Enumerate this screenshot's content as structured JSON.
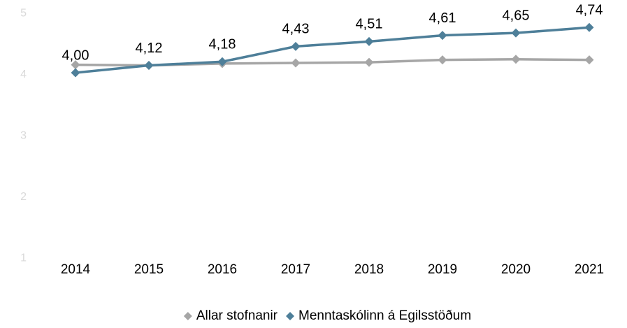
{
  "chart_data": {
    "type": "line",
    "categories": [
      "2014",
      "2015",
      "2016",
      "2017",
      "2018",
      "2019",
      "2020",
      "2021"
    ],
    "series": [
      {
        "name": "Allar stofnanir",
        "color": "#a6a6a6",
        "values": [
          4.13,
          4.12,
          4.15,
          4.16,
          4.17,
          4.21,
          4.22,
          4.21
        ]
      },
      {
        "name": "Menntaskólinn á Egilsstöðum",
        "color": "#4e7f99",
        "values": [
          4.0,
          4.12,
          4.18,
          4.43,
          4.51,
          4.61,
          4.65,
          4.74
        ],
        "value_labels": [
          "4,00",
          "4,12",
          "4,18",
          "4,43",
          "4,51",
          "4,61",
          "4,65",
          "4,74"
        ]
      }
    ],
    "ylim": [
      1,
      5
    ],
    "yticks": [
      1,
      2,
      3,
      4,
      5
    ],
    "grid": false,
    "legend": "bottom"
  }
}
